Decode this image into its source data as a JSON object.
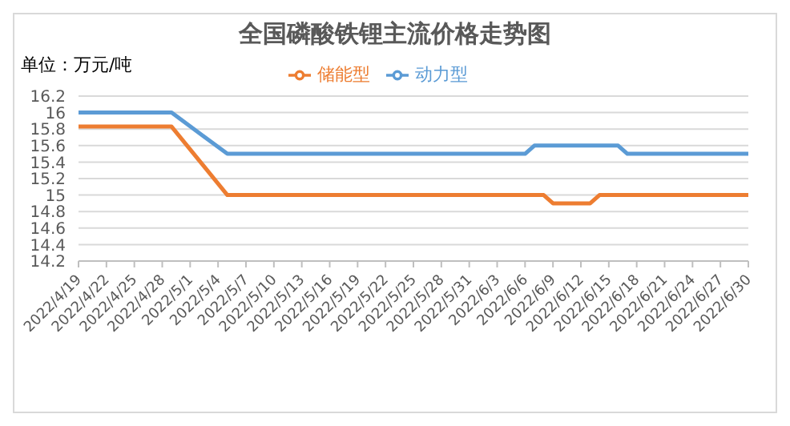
{
  "chart_data": {
    "type": "line",
    "title": "全国磷酸铁锂主流价格走势图",
    "ylabel": "单位：万元/吨",
    "series": [
      {
        "name": "动力型",
        "color": "#5b9bd5",
        "x": [
          "2022-04-19",
          "2022-04-29",
          "2022-05-05",
          "2022-06-06",
          "2022-06-07",
          "2022-06-16",
          "2022-06-17",
          "2022-06-30"
        ],
        "values": [
          16,
          16,
          15.5,
          15.5,
          15.6,
          15.6,
          15.5,
          15.5
        ]
      },
      {
        "name": "储能型",
        "color": "#ed7d31",
        "x": [
          "2022-04-19",
          "2022-04-29",
          "2022-05-05",
          "2022-06-08",
          "2022-06-09",
          "2022-06-13",
          "2022-06-14",
          "2022-06-30"
        ],
        "values": [
          15.83,
          15.83,
          15,
          15,
          14.9,
          14.9,
          15,
          15
        ]
      }
    ],
    "xlim": [
      "2022-04-19",
      "2022-06-30"
    ],
    "xticks": [
      {
        "value": "2022-04-19",
        "label": "2022/4/19"
      },
      {
        "value": "2022-04-22",
        "label": "2022/4/22"
      },
      {
        "value": "2022-04-25",
        "label": "2022/4/25"
      },
      {
        "value": "2022-04-28",
        "label": "2022/4/28"
      },
      {
        "value": "2022-05-01",
        "label": "2022/5/1"
      },
      {
        "value": "2022-05-04",
        "label": "2022/5/4"
      },
      {
        "value": "2022-05-07",
        "label": "2022/5/7"
      },
      {
        "value": "2022-05-10",
        "label": "2022/5/10"
      },
      {
        "value": "2022-05-13",
        "label": "2022/5/13"
      },
      {
        "value": "2022-05-16",
        "label": "2022/5/16"
      },
      {
        "value": "2022-05-19",
        "label": "2022/5/19"
      },
      {
        "value": "2022-05-22",
        "label": "2022/5/22"
      },
      {
        "value": "2022-05-25",
        "label": "2022/5/25"
      },
      {
        "value": "2022-05-28",
        "label": "2022/5/28"
      },
      {
        "value": "2022-05-31",
        "label": "2022/5/31"
      },
      {
        "value": "2022-06-03",
        "label": "2022/6/3"
      },
      {
        "value": "2022-06-06",
        "label": "2022/6/6"
      },
      {
        "value": "2022-06-09",
        "label": "2022/6/9"
      },
      {
        "value": "2022-06-12",
        "label": "2022/6/12"
      },
      {
        "value": "2022-06-15",
        "label": "2022/6/15"
      },
      {
        "value": "2022-06-18",
        "label": "2022/6/18"
      },
      {
        "value": "2022-06-21",
        "label": "2022/6/21"
      },
      {
        "value": "2022-06-24",
        "label": "2022/6/24"
      },
      {
        "value": "2022-06-27",
        "label": "2022/6/27"
      },
      {
        "value": "2022-06-30",
        "label": "2022/6/30"
      }
    ],
    "ylim": [
      14.2,
      16.2
    ],
    "yticks": [
      14.2,
      14.4,
      14.6,
      14.8,
      15,
      15.2,
      15.4,
      15.6,
      15.8,
      16,
      16.2
    ],
    "grid": "y",
    "legend": "top",
    "marker": "none",
    "line_style": "solid"
  }
}
